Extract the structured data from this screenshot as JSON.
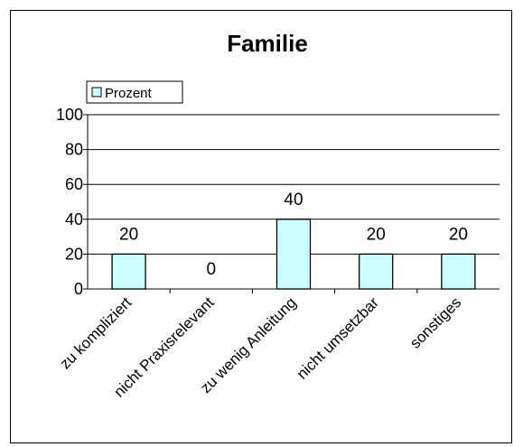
{
  "chart_data": {
    "type": "bar",
    "title": "Familie",
    "categories": [
      "zu kompliziert",
      "nicht Praxisrelevant",
      "zu wenig Anleitung",
      "nicht umsetzbar",
      "sonstiges"
    ],
    "series": [
      {
        "name": "Prozent",
        "values": [
          20,
          0,
          40,
          20,
          20
        ]
      }
    ],
    "ylim": [
      0,
      100
    ],
    "yticks": [
      0,
      20,
      40,
      60,
      80,
      100
    ],
    "grid": true,
    "legend": "top-left",
    "colors": {
      "bar_fill": "#ccffff",
      "bar_stroke": "#000000",
      "grid": "#000000"
    }
  }
}
